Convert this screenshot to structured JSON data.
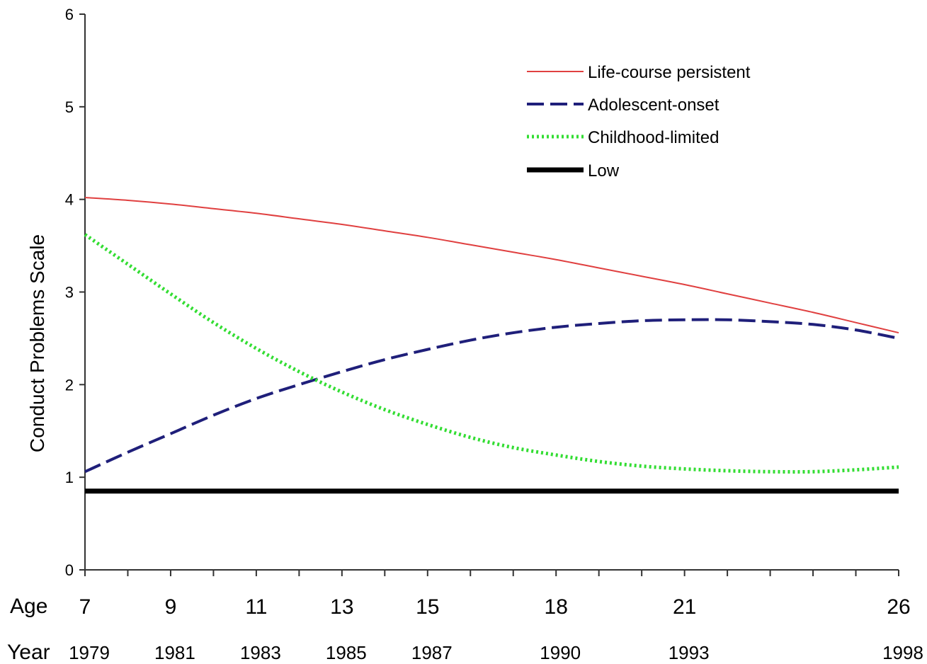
{
  "chart_data": {
    "type": "line",
    "ylabel": "Conduct Problems Scale",
    "ylim": [
      0,
      6
    ],
    "xlim": [
      7,
      26
    ],
    "yticks": [
      0,
      1,
      2,
      3,
      4,
      5,
      6
    ],
    "age_label": "Age",
    "year_label": "Year",
    "age_ticks": [
      {
        "age": 7,
        "year": "1979"
      },
      {
        "age": 9,
        "year": "1981"
      },
      {
        "age": 11,
        "year": "1983"
      },
      {
        "age": 13,
        "year": "1985"
      },
      {
        "age": 15,
        "year": "1987"
      },
      {
        "age": 18,
        "year": "1990"
      },
      {
        "age": 21,
        "year": "1993"
      },
      {
        "age": 26,
        "year": "1998"
      }
    ],
    "minor_tick_ages": [
      7,
      8,
      9,
      10,
      11,
      12,
      13,
      14,
      15,
      16,
      17,
      18,
      19,
      20,
      21,
      22,
      23,
      24,
      25,
      26
    ],
    "legend_position": "top-right",
    "grid": false,
    "series": [
      {
        "name": "Life-course persistent",
        "color": "#e04040",
        "style": "solid",
        "x": [
          7,
          8,
          9,
          10,
          11,
          12,
          13,
          14,
          15,
          16,
          17,
          18,
          19,
          20,
          21,
          22,
          23,
          24,
          25,
          26
        ],
        "y": [
          4.02,
          3.99,
          3.95,
          3.9,
          3.85,
          3.79,
          3.73,
          3.66,
          3.59,
          3.51,
          3.43,
          3.35,
          3.26,
          3.17,
          3.08,
          2.98,
          2.88,
          2.78,
          2.67,
          2.56
        ]
      },
      {
        "name": "Adolescent-onset",
        "color": "#1f1f7a",
        "style": "dashed",
        "x": [
          7,
          8,
          9,
          10,
          11,
          12,
          13,
          14,
          15,
          16,
          17,
          18,
          19,
          20,
          21,
          22,
          23,
          24,
          25,
          26
        ],
        "y": [
          1.06,
          1.27,
          1.47,
          1.67,
          1.85,
          2.0,
          2.14,
          2.27,
          2.38,
          2.48,
          2.56,
          2.62,
          2.66,
          2.69,
          2.7,
          2.7,
          2.68,
          2.65,
          2.59,
          2.5
        ]
      },
      {
        "name": "Childhood-limited",
        "color": "#33dd33",
        "style": "dotted",
        "x": [
          7,
          8,
          9,
          10,
          11,
          12,
          13,
          14,
          15,
          16,
          17,
          18,
          19,
          20,
          21,
          22,
          23,
          24,
          25,
          26
        ],
        "y": [
          3.62,
          3.3,
          2.98,
          2.67,
          2.39,
          2.14,
          1.92,
          1.73,
          1.57,
          1.43,
          1.32,
          1.24,
          1.17,
          1.12,
          1.09,
          1.07,
          1.06,
          1.06,
          1.08,
          1.11
        ]
      },
      {
        "name": "Low",
        "color": "#000000",
        "style": "thick",
        "x": [
          7,
          26
        ],
        "y": [
          0.85,
          0.85
        ]
      }
    ]
  }
}
